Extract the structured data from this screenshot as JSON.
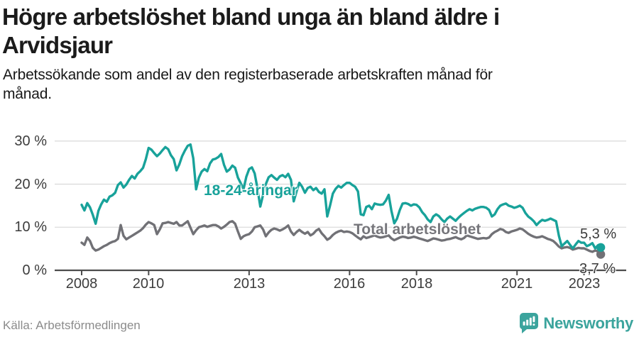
{
  "header": {
    "title_lines": [
      "Högre arbetslöshet bland unga än bland äldre i",
      "Arvidsjaur"
    ],
    "subtitle_lines": [
      "Arbetssökande som andel av den registerbaserade arbetskraften månad för",
      "månad."
    ]
  },
  "footer": {
    "source": "Källa: Arbetsförmedlingen",
    "brand": "Newsworthy"
  },
  "colors": {
    "young_series": "#18a29a",
    "total_series": "#717176",
    "grid": "#dcdcdc",
    "axis": "#4c4c4c",
    "brand_teal": "#3ba49d"
  },
  "chart_data": {
    "type": "line",
    "title": "Högre arbetslöshet bland unga än bland äldre i Arvidsjaur",
    "subtitle": "Arbetssökande som andel av den registerbaserade arbetskraften månad för månad.",
    "xlabel": "",
    "ylabel": "",
    "y_unit": "%",
    "x_start_year": 2008,
    "x_step_months": 1,
    "xlim": [
      2007.2,
      2024.4
    ],
    "ylim": [
      0,
      32
    ],
    "grid": "horizontal",
    "legend_position": "inline-labels",
    "y_ticks": [
      {
        "label": "30 %",
        "value": 30
      },
      {
        "label": "20 %",
        "value": 20
      },
      {
        "label": "10 %",
        "value": 10
      },
      {
        "label": "0 %",
        "value": 0
      }
    ],
    "x_ticks": [
      {
        "label": "2008",
        "value": 2008
      },
      {
        "label": "2010",
        "value": 2010
      },
      {
        "label": "2013",
        "value": 2013
      },
      {
        "label": "2016",
        "value": 2016
      },
      {
        "label": "2018",
        "value": 2018
      },
      {
        "label": "2021",
        "value": 2021
      },
      {
        "label": "2023",
        "value": 2023
      }
    ],
    "series": [
      {
        "name": "Total arbetslöshet",
        "color": "#717176",
        "end_label": "3,7 %",
        "end_value": 3.7,
        "values": [
          6.4,
          5.9,
          7.6,
          6.8,
          5.2,
          4.6,
          4.8,
          5.2,
          5.6,
          5.9,
          6.3,
          6.6,
          6.8,
          7.3,
          10.5,
          8.0,
          7.2,
          7.6,
          8.0,
          8.4,
          8.8,
          9.2,
          9.8,
          10.6,
          11.2,
          10.9,
          10.5,
          8.4,
          9.5,
          10.9,
          11.0,
          11.2,
          11.0,
          10.8,
          11.2,
          10.4,
          10.4,
          10.9,
          11.4,
          9.9,
          8.4,
          9.3,
          10.0,
          10.2,
          10.4,
          10.1,
          10.3,
          10.5,
          10.5,
          10.2,
          9.7,
          10.1,
          10.6,
          11.2,
          11.4,
          10.8,
          9.0,
          7.3,
          7.9,
          8.2,
          8.4,
          9.0,
          10.0,
          10.2,
          10.4,
          9.5,
          7.9,
          8.8,
          9.4,
          9.7,
          9.5,
          9.2,
          9.5,
          9.9,
          10.4,
          9.0,
          8.2,
          8.9,
          9.4,
          8.9,
          8.5,
          8.9,
          8.1,
          8.5,
          9.2,
          9.6,
          8.6,
          7.9,
          7.1,
          7.5,
          8.2,
          8.7,
          9.0,
          9.2,
          8.9,
          9.0,
          8.9,
          8.6,
          8.1,
          7.6,
          7.2,
          7.9,
          7.5,
          7.7,
          7.9,
          8.1,
          7.8,
          7.6,
          7.7,
          7.9,
          8.1,
          7.4,
          7.0,
          7.3,
          7.6,
          7.8,
          7.7,
          7.5,
          7.6,
          7.8,
          7.6,
          7.4,
          7.2,
          7.0,
          6.8,
          7.1,
          7.4,
          7.3,
          7.1,
          6.9,
          7.0,
          7.2,
          7.3,
          7.5,
          7.7,
          7.4,
          7.2,
          7.5,
          8.1,
          7.9,
          7.7,
          7.5,
          7.3,
          7.4,
          7.5,
          7.4,
          7.6,
          8.4,
          8.9,
          9.2,
          9.6,
          9.4,
          8.9,
          8.7,
          9.0,
          9.2,
          9.4,
          9.7,
          9.5,
          9.0,
          8.5,
          8.1,
          7.8,
          7.6,
          7.7,
          7.9,
          7.6,
          7.3,
          7.1,
          6.8,
          6.2,
          5.5,
          5.1,
          5.3,
          5.4,
          5.2,
          4.8,
          5.0,
          5.2,
          5.1,
          5.1,
          4.8,
          4.5,
          4.3,
          4.6,
          4.4,
          3.7
        ]
      },
      {
        "name": "18-24-åringar",
        "color": "#18a29a",
        "end_label": "5,3 %",
        "end_value": 5.3,
        "values": [
          15.2,
          13.9,
          15.6,
          14.6,
          12.9,
          10.8,
          13.8,
          15.3,
          16.4,
          15.9,
          17.1,
          17.4,
          18.0,
          19.8,
          20.4,
          19.2,
          19.9,
          21.0,
          21.9,
          21.3,
          22.4,
          23.0,
          23.8,
          25.8,
          28.4,
          28.0,
          27.2,
          26.5,
          27.1,
          27.9,
          28.6,
          28.1,
          26.7,
          25.8,
          23.2,
          24.6,
          26.5,
          27.8,
          28.9,
          29.2,
          26.0,
          18.8,
          21.5,
          22.9,
          23.5,
          23.0,
          24.8,
          25.7,
          25.9,
          26.3,
          27.0,
          24.5,
          22.9,
          23.4,
          24.3,
          23.8,
          21.5,
          20.2,
          18.8,
          21.7,
          23.5,
          23.9,
          22.5,
          19.0,
          14.8,
          17.5,
          20.0,
          21.6,
          22.1,
          21.5,
          21.0,
          21.8,
          22.1,
          21.6,
          22.4,
          21.0,
          16.0,
          18.3,
          20.3,
          19.4,
          18.0,
          19.1,
          19.4,
          18.6,
          19.1,
          18.2,
          17.8,
          18.8,
          12.5,
          15.0,
          17.8,
          18.9,
          19.6,
          19.2,
          19.8,
          20.3,
          20.3,
          19.8,
          19.4,
          18.3,
          13.0,
          12.8,
          14.7,
          15.0,
          14.2,
          15.5,
          15.3,
          15.2,
          15.3,
          16.2,
          17.5,
          13.8,
          10.9,
          12.0,
          14.0,
          15.5,
          15.6,
          15.4,
          15.0,
          15.3,
          15.2,
          14.6,
          13.5,
          12.8,
          11.8,
          11.2,
          12.5,
          13.0,
          12.6,
          11.8,
          11.2,
          12.0,
          12.5,
          12.0,
          11.5,
          12.2,
          12.8,
          13.3,
          13.8,
          14.2,
          13.9,
          14.3,
          14.5,
          14.7,
          14.7,
          14.5,
          14.0,
          12.5,
          13.0,
          14.2,
          15.0,
          15.3,
          15.5,
          15.0,
          14.8,
          14.5,
          14.7,
          15.0,
          14.5,
          13.3,
          12.5,
          12.0,
          11.4,
          10.5,
          11.2,
          11.7,
          11.5,
          11.7,
          12.0,
          11.7,
          11.4,
          8.0,
          5.6,
          6.2,
          6.8,
          5.9,
          5.1,
          6.0,
          6.8,
          6.4,
          6.4,
          5.6,
          5.9,
          6.3,
          5.1,
          5.8,
          5.3
        ]
      }
    ]
  }
}
